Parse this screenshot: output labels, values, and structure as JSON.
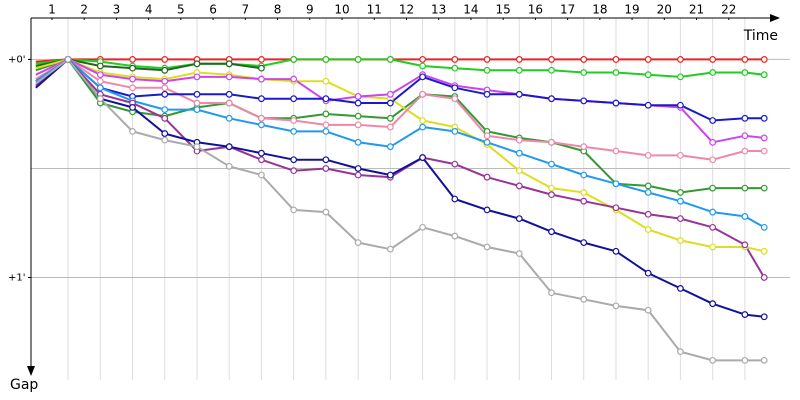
{
  "chart_data": {
    "type": "line",
    "x_label": "Time",
    "y_label": "Gap",
    "y_inverted": true,
    "x": [
      0,
      1,
      2,
      3,
      4,
      5,
      6,
      7,
      8,
      9,
      10,
      11,
      12,
      13,
      14,
      15,
      16,
      17,
      18,
      19,
      20,
      21,
      22,
      22.6
    ],
    "xlim": [
      -0.15,
      23.4
    ],
    "xticks": [
      {
        "value": 0.5,
        "label": "1"
      },
      {
        "value": 1.5,
        "label": "2"
      },
      {
        "value": 2.5,
        "label": "3"
      },
      {
        "value": 3.5,
        "label": "4"
      },
      {
        "value": 4.5,
        "label": "5"
      },
      {
        "value": 5.5,
        "label": "6"
      },
      {
        "value": 6.5,
        "label": "7"
      },
      {
        "value": 7.5,
        "label": "8"
      },
      {
        "value": 8.5,
        "label": "9"
      },
      {
        "value": 9.5,
        "label": "10"
      },
      {
        "value": 10.5,
        "label": "11"
      },
      {
        "value": 11.5,
        "label": "12"
      },
      {
        "value": 12.5,
        "label": "13"
      },
      {
        "value": 13.5,
        "label": "14"
      },
      {
        "value": 14.5,
        "label": "15"
      },
      {
        "value": 15.5,
        "label": "16"
      },
      {
        "value": 16.5,
        "label": "17"
      },
      {
        "value": 17.5,
        "label": "18"
      },
      {
        "value": 18.5,
        "label": "19"
      },
      {
        "value": 19.5,
        "label": "20"
      },
      {
        "value": 20.5,
        "label": "21"
      },
      {
        "value": 21.5,
        "label": "22"
      }
    ],
    "xgrid": [
      1,
      2,
      3,
      4,
      5,
      6,
      7,
      8,
      9,
      10,
      11,
      12,
      13,
      14,
      15,
      16,
      17,
      18,
      19,
      20,
      21,
      22
    ],
    "ylim": [
      -0.19,
      1.47
    ],
    "yticks": [
      {
        "value": 0,
        "label": "+0'"
      },
      {
        "value": 1,
        "label": "+1'"
      }
    ],
    "ygrid": [
      0,
      0.5,
      1
    ],
    "grid": true,
    "series": [
      {
        "name": "Red",
        "color": "#ee2222",
        "values": [
          0.01,
          0,
          0,
          0,
          0,
          0,
          0,
          0,
          0,
          0,
          0,
          0,
          0,
          0,
          0,
          0,
          0,
          0,
          0,
          0,
          0,
          0,
          0,
          0
        ]
      },
      {
        "name": "Lime",
        "color": "#22cc22",
        "values": [
          0.02,
          0,
          0.01,
          0.03,
          0.04,
          0.02,
          0.02,
          0.03,
          0,
          0,
          0,
          0,
          0.03,
          0.04,
          0.05,
          0.05,
          0.05,
          0.06,
          0.06,
          0.07,
          0.08,
          0.06,
          0.06,
          0.07
        ]
      },
      {
        "name": "Dark green",
        "color": "#226622",
        "values": [
          0.03,
          0,
          0.03,
          0.04,
          0.05,
          0.02,
          0.02,
          0.04,
          null,
          null,
          null,
          null,
          null,
          null,
          null,
          null,
          null,
          null,
          null,
          null,
          null,
          null,
          null,
          null
        ]
      },
      {
        "name": "Green",
        "color": "#339933",
        "values": [
          0.05,
          0,
          0.2,
          0.24,
          0.26,
          0.22,
          0.2,
          0.27,
          0.27,
          0.25,
          0.26,
          0.27,
          0.16,
          0.17,
          0.33,
          0.36,
          0.38,
          0.42,
          0.57,
          0.58,
          0.61,
          0.59,
          0.59,
          0.59
        ]
      },
      {
        "name": "Yellow",
        "color": "#dddd22",
        "values": [
          0.04,
          0,
          0.06,
          0.08,
          0.09,
          0.06,
          0.07,
          0.09,
          0.1,
          0.1,
          0.17,
          0.18,
          0.28,
          0.31,
          0.39,
          0.51,
          0.59,
          0.61,
          0.69,
          0.78,
          0.83,
          0.86,
          0.86,
          0.88
        ]
      },
      {
        "name": "Violet",
        "color": "#cc44ee",
        "values": [
          0.07,
          0,
          0.07,
          0.09,
          0.1,
          0.08,
          0.08,
          0.09,
          0.09,
          0.19,
          0.17,
          0.16,
          0.07,
          0.12,
          0.14,
          0.16,
          0.18,
          0.19,
          0.2,
          0.21,
          0.22,
          0.38,
          0.35,
          0.36
        ]
      },
      {
        "name": "Pink",
        "color": "#ee88aa",
        "values": [
          0.09,
          0,
          0.1,
          0.13,
          0.13,
          0.2,
          0.2,
          0.27,
          0.28,
          0.3,
          0.3,
          0.31,
          0.16,
          0.18,
          0.35,
          0.37,
          0.38,
          0.4,
          0.42,
          0.44,
          0.44,
          0.46,
          0.42,
          0.42
        ]
      },
      {
        "name": "Blue",
        "color": "#1a1acc",
        "values": [
          0.1,
          0,
          0.13,
          0.17,
          0.16,
          0.16,
          0.16,
          0.18,
          0.18,
          0.18,
          0.2,
          0.2,
          0.08,
          0.13,
          0.16,
          0.16,
          0.18,
          0.19,
          0.2,
          0.21,
          0.21,
          0.28,
          0.27,
          0.27
        ]
      },
      {
        "name": "Sky",
        "color": "#2299ee",
        "values": [
          0.1,
          0,
          0.13,
          0.19,
          0.23,
          0.23,
          0.27,
          0.3,
          0.33,
          0.33,
          0.38,
          0.4,
          0.31,
          0.33,
          0.38,
          0.43,
          0.48,
          0.53,
          0.57,
          0.61,
          0.65,
          0.7,
          0.72,
          0.77
        ]
      },
      {
        "name": "Purple",
        "color": "#993399",
        "values": [
          0.12,
          0,
          0.16,
          0.2,
          0.27,
          0.42,
          0.4,
          0.46,
          0.51,
          0.5,
          0.53,
          0.54,
          0.45,
          0.48,
          0.54,
          0.58,
          0.62,
          0.65,
          0.68,
          0.71,
          0.73,
          0.77,
          0.85,
          1.0
        ]
      },
      {
        "name": "Navy",
        "color": "#111199",
        "values": [
          0.13,
          0,
          0.18,
          0.22,
          0.34,
          0.38,
          0.4,
          0.43,
          0.46,
          0.46,
          0.5,
          0.53,
          0.45,
          0.64,
          0.69,
          0.73,
          0.79,
          0.84,
          0.88,
          0.98,
          1.05,
          1.12,
          1.17,
          1.18
        ]
      },
      {
        "name": "Grey",
        "color": "#aaaaaa",
        "values": [
          0.11,
          0,
          0.18,
          0.33,
          0.37,
          0.4,
          0.49,
          0.53,
          0.69,
          0.7,
          0.84,
          0.87,
          0.77,
          0.81,
          0.86,
          0.89,
          1.07,
          1.1,
          1.13,
          1.15,
          1.34,
          1.38,
          1.38,
          1.38
        ]
      }
    ]
  }
}
